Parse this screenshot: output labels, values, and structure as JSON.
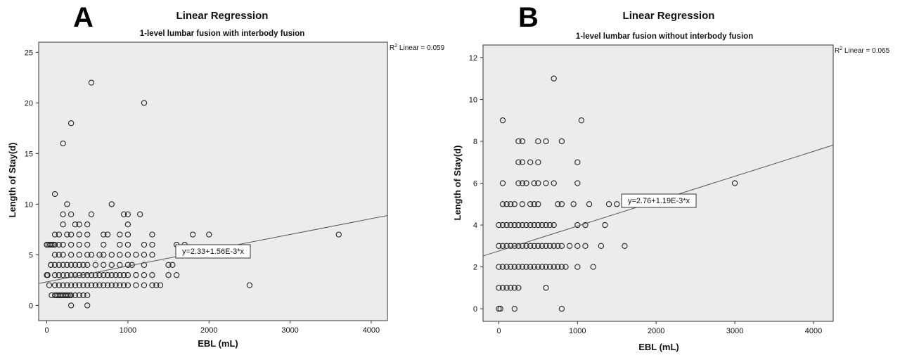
{
  "chart_data": [
    {
      "type": "scatter",
      "panel_label": "A",
      "title": "Linear Regression",
      "subtitle": "1-level lumbar fusion with interbody fusion",
      "xlabel": "EBL (mL)",
      "ylabel": "Length of Stay(d)",
      "xlim": [
        -100,
        4200
      ],
      "ylim": [
        -1.5,
        26
      ],
      "x_ticks": [
        0,
        1000,
        2000,
        3000,
        4000
      ],
      "y_ticks": [
        0,
        5,
        10,
        15,
        20,
        25
      ],
      "r2_prefix": "R",
      "r2_sup": "2",
      "r2_label": " Linear = 0.059",
      "fit_equation": "y=2.33+1.56E-3*x",
      "fit": {
        "intercept": 2.33,
        "slope": 0.00156
      },
      "grid": false,
      "plot_bg": "#ececec",
      "points": [
        [
          0,
          6
        ],
        [
          20,
          6
        ],
        [
          40,
          6
        ],
        [
          60,
          6
        ],
        [
          80,
          6
        ],
        [
          0,
          3
        ],
        [
          10,
          3
        ],
        [
          30,
          2
        ],
        [
          50,
          4
        ],
        [
          60,
          1
        ],
        [
          100,
          1
        ],
        [
          120,
          1
        ],
        [
          140,
          1
        ],
        [
          160,
          1
        ],
        [
          180,
          1
        ],
        [
          200,
          1
        ],
        [
          220,
          1
        ],
        [
          240,
          1
        ],
        [
          260,
          1
        ],
        [
          280,
          1
        ],
        [
          300,
          1
        ],
        [
          350,
          1
        ],
        [
          400,
          1
        ],
        [
          450,
          1
        ],
        [
          500,
          1
        ],
        [
          100,
          2
        ],
        [
          150,
          2
        ],
        [
          200,
          2
        ],
        [
          250,
          2
        ],
        [
          300,
          2
        ],
        [
          350,
          2
        ],
        [
          400,
          2
        ],
        [
          450,
          2
        ],
        [
          500,
          2
        ],
        [
          550,
          2
        ],
        [
          600,
          2
        ],
        [
          650,
          2
        ],
        [
          700,
          2
        ],
        [
          750,
          2
        ],
        [
          800,
          2
        ],
        [
          850,
          2
        ],
        [
          900,
          2
        ],
        [
          950,
          2
        ],
        [
          1000,
          2
        ],
        [
          1100,
          2
        ],
        [
          1200,
          2
        ],
        [
          1300,
          2
        ],
        [
          1350,
          2
        ],
        [
          1400,
          2
        ],
        [
          100,
          3
        ],
        [
          150,
          3
        ],
        [
          200,
          3
        ],
        [
          250,
          3
        ],
        [
          300,
          3
        ],
        [
          350,
          3
        ],
        [
          400,
          3
        ],
        [
          450,
          3
        ],
        [
          500,
          3
        ],
        [
          550,
          3
        ],
        [
          600,
          3
        ],
        [
          650,
          3
        ],
        [
          700,
          3
        ],
        [
          750,
          3
        ],
        [
          800,
          3
        ],
        [
          850,
          3
        ],
        [
          900,
          3
        ],
        [
          950,
          3
        ],
        [
          1000,
          3
        ],
        [
          1100,
          3
        ],
        [
          1200,
          3
        ],
        [
          1300,
          3
        ],
        [
          1500,
          3
        ],
        [
          1600,
          3
        ],
        [
          50,
          4
        ],
        [
          100,
          4
        ],
        [
          150,
          4
        ],
        [
          200,
          4
        ],
        [
          250,
          4
        ],
        [
          300,
          4
        ],
        [
          350,
          4
        ],
        [
          400,
          4
        ],
        [
          450,
          4
        ],
        [
          500,
          4
        ],
        [
          600,
          4
        ],
        [
          700,
          4
        ],
        [
          800,
          4
        ],
        [
          900,
          4
        ],
        [
          1000,
          4
        ],
        [
          1050,
          4
        ],
        [
          1200,
          4
        ],
        [
          1500,
          4
        ],
        [
          1550,
          4
        ],
        [
          100,
          5
        ],
        [
          150,
          5
        ],
        [
          200,
          5
        ],
        [
          300,
          5
        ],
        [
          400,
          5
        ],
        [
          500,
          5
        ],
        [
          550,
          5
        ],
        [
          650,
          5
        ],
        [
          700,
          5
        ],
        [
          800,
          5
        ],
        [
          900,
          5
        ],
        [
          1000,
          5
        ],
        [
          1100,
          5
        ],
        [
          1200,
          5
        ],
        [
          1300,
          5
        ],
        [
          0,
          6
        ],
        [
          100,
          6
        ],
        [
          150,
          6
        ],
        [
          200,
          6
        ],
        [
          300,
          6
        ],
        [
          400,
          6
        ],
        [
          500,
          6
        ],
        [
          700,
          6
        ],
        [
          900,
          6
        ],
        [
          1000,
          6
        ],
        [
          1200,
          6
        ],
        [
          1300,
          6
        ],
        [
          1600,
          6
        ],
        [
          1700,
          6
        ],
        [
          100,
          7
        ],
        [
          150,
          7
        ],
        [
          250,
          7
        ],
        [
          300,
          7
        ],
        [
          400,
          7
        ],
        [
          500,
          7
        ],
        [
          700,
          7
        ],
        [
          750,
          7
        ],
        [
          900,
          7
        ],
        [
          1000,
          7
        ],
        [
          1300,
          7
        ],
        [
          1800,
          7
        ],
        [
          2000,
          7
        ],
        [
          3600,
          7
        ],
        [
          200,
          8
        ],
        [
          350,
          8
        ],
        [
          400,
          8
        ],
        [
          500,
          8
        ],
        [
          1000,
          8
        ],
        [
          200,
          9
        ],
        [
          300,
          9
        ],
        [
          550,
          9
        ],
        [
          950,
          9
        ],
        [
          1000,
          9
        ],
        [
          1150,
          9
        ],
        [
          250,
          10
        ],
        [
          800,
          10
        ],
        [
          100,
          11
        ],
        [
          200,
          16
        ],
        [
          300,
          18
        ],
        [
          1200,
          20
        ],
        [
          550,
          22
        ],
        [
          300,
          0
        ],
        [
          500,
          0
        ],
        [
          2500,
          2
        ]
      ]
    },
    {
      "type": "scatter",
      "panel_label": "B",
      "title": "Linear Regression",
      "subtitle": "1-level lumbar fusion without interbody fusion",
      "xlabel": "EBL (mL)",
      "ylabel": "Length of Stay(d)",
      "xlim": [
        -200,
        4250
      ],
      "ylim": [
        -0.6,
        12.6
      ],
      "x_ticks": [
        0,
        1000,
        2000,
        3000,
        4000
      ],
      "y_ticks": [
        0,
        2,
        4,
        6,
        8,
        10,
        12
      ],
      "r2_prefix": "R",
      "r2_sup": "2",
      "r2_label": " Linear = 0.065",
      "fit_equation": "y=2.76+1.19E-3*x",
      "fit": {
        "intercept": 2.76,
        "slope": 0.00119
      },
      "grid": false,
      "plot_bg": "#ececec",
      "points": [
        [
          0,
          0
        ],
        [
          20,
          0
        ],
        [
          200,
          0
        ],
        [
          800,
          0
        ],
        [
          0,
          1
        ],
        [
          50,
          1
        ],
        [
          100,
          1
        ],
        [
          150,
          1
        ],
        [
          200,
          1
        ],
        [
          250,
          1
        ],
        [
          600,
          1
        ],
        [
          0,
          2
        ],
        [
          50,
          2
        ],
        [
          100,
          2
        ],
        [
          150,
          2
        ],
        [
          200,
          2
        ],
        [
          250,
          2
        ],
        [
          300,
          2
        ],
        [
          350,
          2
        ],
        [
          400,
          2
        ],
        [
          450,
          2
        ],
        [
          500,
          2
        ],
        [
          550,
          2
        ],
        [
          600,
          2
        ],
        [
          650,
          2
        ],
        [
          700,
          2
        ],
        [
          750,
          2
        ],
        [
          800,
          2
        ],
        [
          850,
          2
        ],
        [
          1000,
          2
        ],
        [
          1200,
          2
        ],
        [
          0,
          3
        ],
        [
          50,
          3
        ],
        [
          100,
          3
        ],
        [
          150,
          3
        ],
        [
          200,
          3
        ],
        [
          250,
          3
        ],
        [
          300,
          3
        ],
        [
          350,
          3
        ],
        [
          400,
          3
        ],
        [
          450,
          3
        ],
        [
          500,
          3
        ],
        [
          550,
          3
        ],
        [
          600,
          3
        ],
        [
          650,
          3
        ],
        [
          700,
          3
        ],
        [
          750,
          3
        ],
        [
          800,
          3
        ],
        [
          900,
          3
        ],
        [
          1000,
          3
        ],
        [
          1100,
          3
        ],
        [
          1300,
          3
        ],
        [
          1600,
          3
        ],
        [
          0,
          4
        ],
        [
          50,
          4
        ],
        [
          100,
          4
        ],
        [
          150,
          4
        ],
        [
          200,
          4
        ],
        [
          250,
          4
        ],
        [
          300,
          4
        ],
        [
          350,
          4
        ],
        [
          400,
          4
        ],
        [
          450,
          4
        ],
        [
          500,
          4
        ],
        [
          550,
          4
        ],
        [
          600,
          4
        ],
        [
          650,
          4
        ],
        [
          700,
          4
        ],
        [
          1000,
          4
        ],
        [
          1100,
          4
        ],
        [
          1350,
          4
        ],
        [
          50,
          5
        ],
        [
          100,
          5
        ],
        [
          150,
          5
        ],
        [
          200,
          5
        ],
        [
          300,
          5
        ],
        [
          400,
          5
        ],
        [
          450,
          5
        ],
        [
          500,
          5
        ],
        [
          750,
          5
        ],
        [
          800,
          5
        ],
        [
          950,
          5
        ],
        [
          1150,
          5
        ],
        [
          1400,
          5
        ],
        [
          1500,
          5
        ],
        [
          50,
          6
        ],
        [
          250,
          6
        ],
        [
          300,
          6
        ],
        [
          350,
          6
        ],
        [
          450,
          6
        ],
        [
          500,
          6
        ],
        [
          600,
          6
        ],
        [
          700,
          6
        ],
        [
          1000,
          6
        ],
        [
          3000,
          6
        ],
        [
          250,
          7
        ],
        [
          300,
          7
        ],
        [
          400,
          7
        ],
        [
          500,
          7
        ],
        [
          1000,
          7
        ],
        [
          250,
          8
        ],
        [
          300,
          8
        ],
        [
          500,
          8
        ],
        [
          600,
          8
        ],
        [
          800,
          8
        ],
        [
          50,
          9
        ],
        [
          1050,
          9
        ],
        [
          700,
          11
        ]
      ]
    }
  ]
}
